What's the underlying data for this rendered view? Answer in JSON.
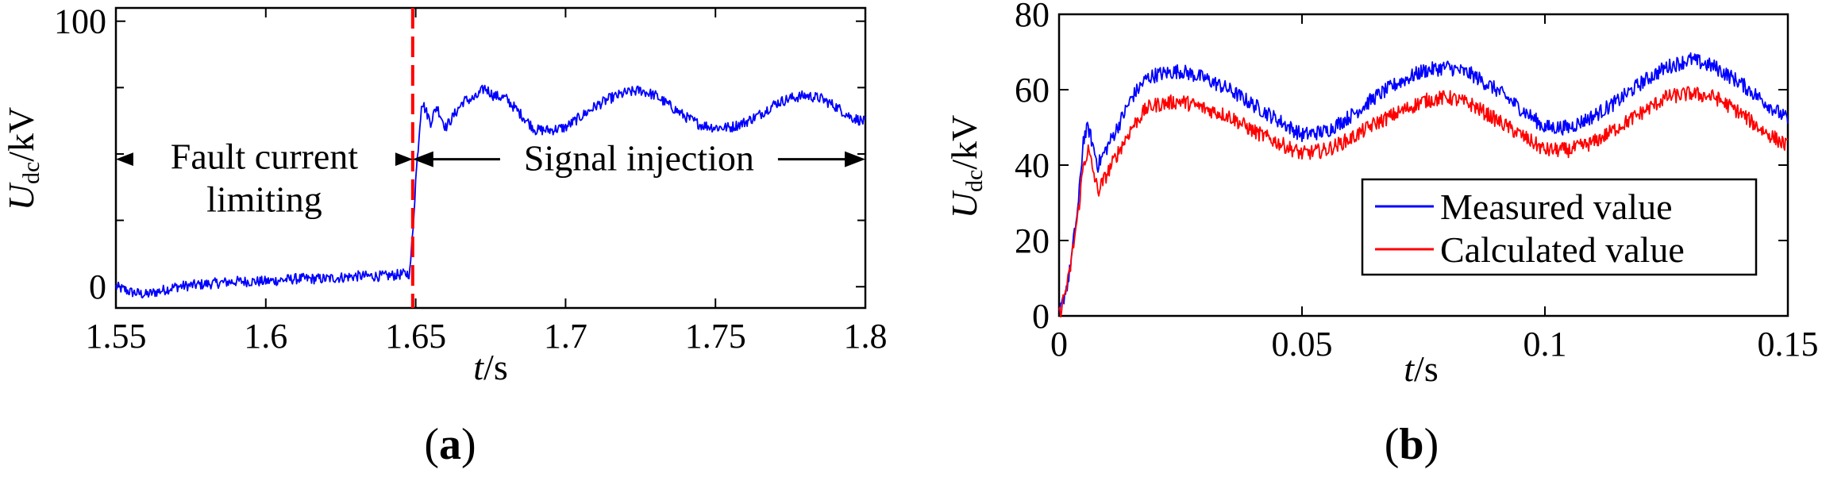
{
  "chart_data": [
    {
      "type": "line",
      "panel_label": "(a)",
      "caption_letter": "a",
      "xlabel_var": "t",
      "xlabel_unit": "/s",
      "ylabel_var": "U",
      "ylabel_sub": "dc",
      "ylabel_unit": "/kV",
      "xlim": [
        1.55,
        1.8
      ],
      "ylim": [
        -8,
        105
      ],
      "xticks": [
        {
          "value": 1.55,
          "label": "1.55"
        },
        {
          "value": 1.6,
          "label": "1.6"
        },
        {
          "value": 1.65,
          "label": "1.65"
        },
        {
          "value": 1.7,
          "label": "1.7"
        },
        {
          "value": 1.75,
          "label": "1.75"
        },
        {
          "value": 1.8,
          "label": "1.8"
        }
      ],
      "yticks": [
        {
          "value": 0,
          "label": "0"
        },
        {
          "value": 100,
          "label": "100"
        }
      ],
      "minor_yticks": [
        25,
        50,
        75
      ],
      "series": [
        {
          "name": "Udc",
          "color": "#0000ff",
          "x": [
            1.55,
            1.555,
            1.56,
            1.57,
            1.58,
            1.59,
            1.6,
            1.61,
            1.62,
            1.63,
            1.64,
            1.648,
            1.649,
            1.65,
            1.652,
            1.655,
            1.657,
            1.66,
            1.663,
            1.666,
            1.67,
            1.673,
            1.676,
            1.68,
            1.685,
            1.69,
            1.695,
            1.7,
            1.705,
            1.71,
            1.715,
            1.72,
            1.725,
            1.73,
            1.735,
            1.74,
            1.745,
            1.75,
            1.755,
            1.76,
            1.765,
            1.77,
            1.775,
            1.78,
            1.785,
            1.79,
            1.795,
            1.8
          ],
          "values": [
            0,
            -2,
            -3,
            0,
            1,
            2,
            2,
            3,
            3,
            4,
            4,
            5,
            20,
            40,
            70,
            62,
            68,
            60,
            65,
            70,
            71,
            75,
            72,
            71,
            65,
            59,
            59,
            60,
            64,
            68,
            71,
            73,
            74,
            72,
            68,
            64,
            61,
            60,
            60,
            62,
            65,
            69,
            71,
            72,
            71,
            68,
            64,
            62
          ]
        }
      ],
      "fault_line": {
        "x": 1.649,
        "color": "#ff0000"
      },
      "annotations": [
        {
          "text_line1": "Fault current",
          "text_line2": "limiting",
          "x_start": 1.55,
          "x_end": 1.649,
          "y": 48
        },
        {
          "text": "Signal injection",
          "x_start": 1.649,
          "x_end": 1.8,
          "y": 48
        }
      ]
    },
    {
      "type": "line",
      "panel_label": "(b)",
      "caption_letter": "b",
      "xlabel_var": "t",
      "xlabel_unit": "/s",
      "ylabel_var": "U",
      "ylabel_sub": "dc",
      "ylabel_unit": "/kV",
      "xlim": [
        0,
        0.15
      ],
      "ylim": [
        0,
        80
      ],
      "xticks": [
        {
          "value": 0,
          "label": "0"
        },
        {
          "value": 0.05,
          "label": "0.05"
        },
        {
          "value": 0.1,
          "label": "0.1"
        },
        {
          "value": 0.15,
          "label": "0.15"
        }
      ],
      "yticks": [
        {
          "value": 0,
          "label": "0"
        },
        {
          "value": 20,
          "label": "20"
        },
        {
          "value": 40,
          "label": "40"
        },
        {
          "value": 60,
          "label": "60"
        },
        {
          "value": 80,
          "label": "80"
        }
      ],
      "legend": {
        "placement": "lower-right"
      },
      "series": [
        {
          "name": "Measured value",
          "color": "#0000ff",
          "x": [
            0,
            0.002,
            0.004,
            0.005,
            0.006,
            0.008,
            0.01,
            0.012,
            0.015,
            0.018,
            0.02,
            0.025,
            0.03,
            0.035,
            0.04,
            0.045,
            0.05,
            0.055,
            0.06,
            0.065,
            0.07,
            0.075,
            0.08,
            0.085,
            0.09,
            0.095,
            0.1,
            0.105,
            0.11,
            0.115,
            0.12,
            0.125,
            0.13,
            0.135,
            0.14,
            0.145,
            0.15
          ],
          "values": [
            0,
            10,
            30,
            47,
            50,
            40,
            45,
            50,
            58,
            63,
            64,
            65,
            63,
            60,
            56,
            52,
            48,
            49,
            53,
            58,
            62,
            65,
            66,
            64,
            60,
            55,
            50,
            50,
            53,
            57,
            62,
            66,
            68,
            66,
            62,
            57,
            52
          ]
        },
        {
          "name": "Calculated value",
          "color": "#ff0000",
          "x": [
            0,
            0.002,
            0.004,
            0.005,
            0.006,
            0.008,
            0.01,
            0.012,
            0.015,
            0.018,
            0.02,
            0.025,
            0.03,
            0.035,
            0.04,
            0.045,
            0.05,
            0.055,
            0.06,
            0.065,
            0.07,
            0.075,
            0.08,
            0.085,
            0.09,
            0.095,
            0.1,
            0.105,
            0.11,
            0.115,
            0.12,
            0.125,
            0.13,
            0.135,
            0.14,
            0.145,
            0.15
          ],
          "values": [
            0,
            10,
            28,
            40,
            44,
            33,
            38,
            43,
            50,
            55,
            56,
            57,
            55,
            53,
            49,
            46,
            43,
            44,
            47,
            51,
            54,
            57,
            58,
            56,
            52,
            48,
            44,
            44,
            46,
            50,
            54,
            58,
            59,
            58,
            54,
            49,
            45
          ]
        }
      ]
    }
  ]
}
